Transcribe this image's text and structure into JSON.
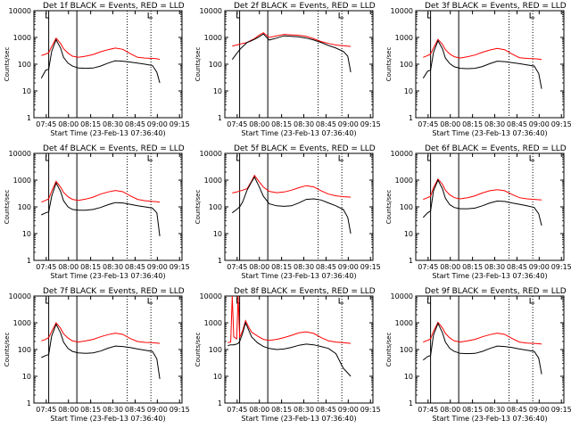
{
  "figure": {
    "shared_xlabel": "Start Time (23-Feb-13 07:36:40)",
    "shared_ylabel": "Counts/sec",
    "x_ticks": [
      "07:45",
      "08:00",
      "08:15",
      "08:30",
      "08:45",
      "09:00",
      "09:15"
    ],
    "y_ticks": [
      "1",
      "10",
      "100",
      "1000",
      "10000"
    ]
  },
  "colors": {
    "events": "#000000",
    "lld": "#ff0000",
    "marker": "#000000"
  },
  "chart_data": [
    {
      "type": "line",
      "title": "Det 1f BLACK = Events, RED = LLD",
      "xlabel": "Start Time (23-Feb-13 07:36:40)",
      "ylabel": "Counts/sec",
      "x_unit": "minutes after 07:36:40",
      "x": [
        5,
        8,
        10,
        12,
        15,
        18,
        20,
        23,
        26,
        30,
        35,
        40,
        45,
        50,
        55,
        60,
        65,
        70,
        75,
        80,
        83,
        85
      ],
      "ylim": [
        1,
        10000
      ],
      "y_scale": "log",
      "series": [
        {
          "name": "RED = LLD",
          "values": [
            210,
            240,
            270,
            450,
            940,
            600,
            380,
            260,
            200,
            180,
            200,
            230,
            290,
            350,
            400,
            360,
            250,
            180,
            170,
            165,
            160,
            150
          ]
        },
        {
          "name": "BLACK = Events",
          "values": [
            30,
            60,
            65,
            300,
            820,
            400,
            180,
            110,
            85,
            72,
            70,
            72,
            85,
            110,
            135,
            130,
            120,
            110,
            100,
            90,
            50,
            20
          ]
        }
      ],
      "markers": {
        "solid": [
          10,
          29
        ],
        "dotted": [
          63,
          79
        ]
      }
    },
    {
      "type": "line",
      "title": "Det 2f BLACK = Events, RED = LLD",
      "xlabel": "Start Time (23-Feb-13 07:36:40)",
      "ylabel": "Counts/sec",
      "x_unit": "minutes after 07:36:40",
      "x": [
        5,
        8,
        10,
        12,
        15,
        18,
        20,
        23,
        26,
        30,
        35,
        40,
        45,
        50,
        55,
        60,
        65,
        70,
        75,
        80,
        83,
        85
      ],
      "ylim": [
        1,
        10000
      ],
      "y_scale": "log",
      "series": [
        {
          "name": "RED = LLD",
          "values": [
            480,
            520,
            560,
            600,
            650,
            800,
            900,
            1200,
            1500,
            1000,
            1150,
            1300,
            1250,
            1200,
            1100,
            900,
            700,
            600,
            520,
            490,
            470,
            460
          ]
        },
        {
          "name": "BLACK = Events",
          "values": [
            150,
            250,
            350,
            450,
            650,
            750,
            850,
            1050,
            1350,
            800,
            950,
            1150,
            1100,
            1050,
            950,
            800,
            650,
            500,
            400,
            300,
            200,
            50
          ]
        }
      ],
      "markers": {
        "solid": [
          10,
          29
        ],
        "dotted": [
          63,
          79
        ]
      }
    },
    {
      "type": "line",
      "title": "Det 3f BLACK = Events, RED = LLD",
      "xlabel": "Start Time (23-Feb-13 07:36:40)",
      "ylabel": "Counts/sec",
      "x_unit": "minutes after 07:36:40",
      "x": [
        5,
        8,
        10,
        12,
        15,
        18,
        20,
        23,
        26,
        30,
        35,
        40,
        45,
        50,
        55,
        60,
        65,
        70,
        75,
        80,
        83,
        85
      ],
      "ylim": [
        1,
        10000
      ],
      "y_scale": "log",
      "series": [
        {
          "name": "RED = LLD",
          "values": [
            180,
            210,
            240,
            400,
            850,
            550,
            350,
            240,
            190,
            170,
            190,
            220,
            280,
            340,
            390,
            350,
            240,
            175,
            165,
            160,
            155,
            150
          ]
        },
        {
          "name": "BLACK = Events",
          "values": [
            30,
            55,
            60,
            280,
            750,
            380,
            170,
            105,
            80,
            70,
            68,
            70,
            82,
            105,
            130,
            125,
            115,
            105,
            95,
            85,
            45,
            12
          ]
        }
      ],
      "markers": {
        "solid": [
          10,
          29
        ],
        "dotted": [
          63,
          79
        ]
      }
    },
    {
      "type": "line",
      "title": "Det 4f BLACK = Events, RED = LLD",
      "xlabel": "Start Time (23-Feb-13 07:36:40)",
      "ylabel": "Counts/sec",
      "x_unit": "minutes after 07:36:40",
      "x": [
        5,
        8,
        10,
        12,
        15,
        18,
        20,
        23,
        26,
        30,
        35,
        40,
        45,
        50,
        55,
        60,
        65,
        70,
        75,
        80,
        83,
        85
      ],
      "ylim": [
        1,
        10000
      ],
      "y_scale": "log",
      "series": [
        {
          "name": "RED = LLD",
          "values": [
            150,
            175,
            200,
            380,
            900,
            550,
            350,
            240,
            190,
            175,
            195,
            230,
            300,
            360,
            410,
            370,
            260,
            190,
            170,
            160,
            155,
            150
          ]
        },
        {
          "name": "BLACK = Events",
          "values": [
            50,
            60,
            65,
            250,
            780,
            380,
            170,
            100,
            80,
            75,
            75,
            80,
            95,
            120,
            145,
            140,
            125,
            110,
            100,
            90,
            60,
            8
          ]
        }
      ],
      "markers": {
        "solid": [
          10,
          29
        ],
        "dotted": [
          63,
          79
        ]
      }
    },
    {
      "type": "line",
      "title": "Det 5f BLACK = Events, RED = LLD",
      "xlabel": "Start Time (23-Feb-13 07:36:40)",
      "ylabel": "Counts/sec",
      "x_unit": "minutes after 07:36:40",
      "x": [
        5,
        8,
        10,
        12,
        15,
        18,
        20,
        23,
        26,
        30,
        35,
        40,
        45,
        50,
        55,
        60,
        65,
        70,
        75,
        80,
        83,
        85
      ],
      "ylim": [
        1,
        10000
      ],
      "y_scale": "log",
      "series": [
        {
          "name": "RED = LLD",
          "values": [
            330,
            360,
            390,
            420,
            480,
            900,
            1500,
            900,
            550,
            380,
            340,
            360,
            420,
            520,
            620,
            560,
            400,
            300,
            260,
            240,
            235,
            230
          ]
        },
        {
          "name": "BLACK = Events",
          "values": [
            60,
            80,
            100,
            150,
            420,
            850,
            1300,
            600,
            250,
            130,
            110,
            105,
            110,
            140,
            190,
            200,
            180,
            140,
            110,
            80,
            40,
            10
          ]
        }
      ],
      "markers": {
        "solid": [
          10,
          29
        ],
        "dotted": [
          63,
          79
        ]
      }
    },
    {
      "type": "line",
      "title": "Det 6f BLACK = Events, RED = LLD",
      "xlabel": "Start Time (23-Feb-13 07:36:40)",
      "ylabel": "Counts/sec",
      "x_unit": "minutes after 07:36:40",
      "x": [
        5,
        8,
        10,
        12,
        15,
        18,
        20,
        23,
        26,
        30,
        35,
        40,
        45,
        50,
        55,
        60,
        65,
        70,
        75,
        80,
        83,
        85
      ],
      "ylim": [
        1,
        10000
      ],
      "y_scale": "log",
      "series": [
        {
          "name": "RED = LLD",
          "values": [
            190,
            220,
            250,
            520,
            1100,
            700,
            420,
            280,
            220,
            200,
            220,
            260,
            330,
            400,
            440,
            400,
            290,
            220,
            200,
            190,
            185,
            180
          ]
        },
        {
          "name": "BLACK = Events",
          "values": [
            40,
            60,
            70,
            400,
            1000,
            480,
            210,
            120,
            95,
            85,
            85,
            90,
            110,
            140,
            165,
            160,
            140,
            125,
            110,
            95,
            55,
            20
          ]
        }
      ],
      "markers": {
        "solid": [
          10,
          29
        ],
        "dotted": [
          63,
          79
        ]
      }
    },
    {
      "type": "line",
      "title": "Det 7f BLACK = Events, RED = LLD",
      "xlabel": "Start Time (23-Feb-13 07:36:40)",
      "ylabel": "Counts/sec",
      "x_unit": "minutes after 07:36:40",
      "x": [
        5,
        8,
        10,
        12,
        15,
        18,
        20,
        23,
        26,
        30,
        35,
        40,
        45,
        50,
        55,
        60,
        65,
        70,
        75,
        80,
        83,
        85
      ],
      "ylim": [
        1,
        10000
      ],
      "y_scale": "log",
      "series": [
        {
          "name": "RED = LLD",
          "values": [
            210,
            240,
            280,
            470,
            1000,
            620,
            390,
            270,
            210,
            190,
            210,
            240,
            300,
            360,
            410,
            370,
            260,
            200,
            185,
            180,
            175,
            170
          ]
        },
        {
          "name": "BLACK = Events",
          "values": [
            50,
            60,
            65,
            320,
            880,
            420,
            190,
            110,
            85,
            75,
            72,
            75,
            88,
            112,
            135,
            130,
            118,
            105,
            95,
            85,
            45,
            8
          ]
        }
      ],
      "markers": {
        "solid": [
          10,
          29
        ],
        "dotted": [
          63,
          79
        ]
      }
    },
    {
      "type": "line",
      "title": "Det 8f BLACK = Events, RED = LLD",
      "xlabel": "Start Time (23-Feb-13 07:36:40)",
      "ylabel": "Counts/sec",
      "x_unit": "minutes after 07:36:40",
      "x": [
        2,
        4,
        5,
        6,
        8,
        9,
        10,
        12,
        14,
        16,
        18,
        22,
        26,
        30,
        35,
        40,
        45,
        50,
        55,
        60,
        65,
        70,
        75,
        80,
        85
      ],
      "ylim": [
        1,
        10000
      ],
      "y_scale": "log",
      "series": [
        {
          "name": "RED = LLD",
          "values": [
            180,
            190,
            10000,
            300,
            250,
            10000,
            280,
            500,
            1200,
            700,
            450,
            320,
            240,
            220,
            240,
            280,
            340,
            420,
            460,
            400,
            280,
            210,
            190,
            180,
            170
          ]
        },
        {
          "name": "BLACK = Events",
          "values": [
            140,
            150,
            150,
            150,
            160,
            170,
            200,
            400,
            1000,
            550,
            300,
            180,
            130,
            110,
            100,
            105,
            120,
            145,
            160,
            150,
            130,
            110,
            70,
            20,
            10
          ]
        }
      ],
      "markers": {
        "solid": [
          10,
          29
        ],
        "dotted": [
          63,
          79
        ]
      }
    },
    {
      "type": "line",
      "title": "Det 9f BLACK = Events, RED = LLD",
      "xlabel": "Start Time (23-Feb-13 07:36:40)",
      "ylabel": "Counts/sec",
      "x_unit": "minutes after 07:36:40",
      "x": [
        5,
        8,
        10,
        12,
        15,
        18,
        20,
        23,
        26,
        30,
        35,
        40,
        45,
        50,
        55,
        60,
        65,
        70,
        75,
        80,
        83,
        85
      ],
      "ylim": [
        1,
        10000
      ],
      "y_scale": "log",
      "series": [
        {
          "name": "RED = LLD",
          "values": [
            190,
            220,
            250,
            480,
            1050,
            640,
            400,
            270,
            210,
            190,
            210,
            240,
            300,
            360,
            410,
            370,
            260,
            190,
            175,
            170,
            165,
            160
          ]
        },
        {
          "name": "BLACK = Events",
          "values": [
            40,
            55,
            60,
            350,
            950,
            430,
            190,
            110,
            85,
            72,
            70,
            72,
            85,
            110,
            135,
            130,
            118,
            105,
            95,
            85,
            48,
            12
          ]
        }
      ],
      "markers": {
        "solid": [
          10,
          29
        ],
        "dotted": [
          63,
          79
        ]
      }
    }
  ]
}
